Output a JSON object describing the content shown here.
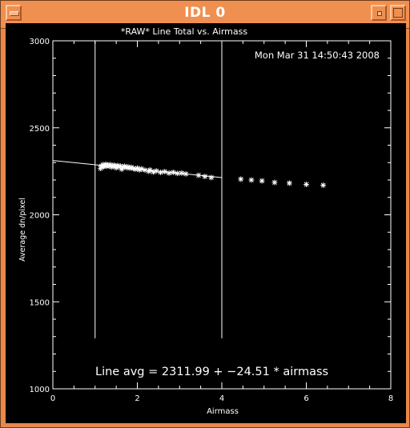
{
  "window": {
    "title": "IDL 0"
  },
  "plot": {
    "timestamp": "Mon Mar 31 14:50:43 2008",
    "annotation": "Line avg = 2311.99 + −24.51 * airmass"
  },
  "chart_data": {
    "type": "scatter",
    "title": "*RAW* Line Total vs. Airmass",
    "xlabel": "Airmass",
    "ylabel": "Average dn/pixel",
    "xlim": [
      0,
      8
    ],
    "ylim": [
      1000,
      3000
    ],
    "x_ticks": [
      "0",
      "2",
      "4",
      "6",
      "8"
    ],
    "y_ticks": [
      "1000",
      "1500",
      "2000",
      "2500",
      "3000"
    ],
    "grid": false,
    "marker": "asterisk",
    "series": [
      {
        "points": [
          [
            1.13,
            2266
          ],
          [
            1.15,
            2280
          ],
          [
            1.18,
            2287
          ],
          [
            1.2,
            2276
          ],
          [
            1.22,
            2283
          ],
          [
            1.25,
            2290
          ],
          [
            1.28,
            2279
          ],
          [
            1.3,
            2286
          ],
          [
            1.33,
            2282
          ],
          [
            1.36,
            2288
          ],
          [
            1.39,
            2275
          ],
          [
            1.42,
            2281
          ],
          [
            1.45,
            2285
          ],
          [
            1.48,
            2278
          ],
          [
            1.5,
            2270
          ],
          [
            1.53,
            2283
          ],
          [
            1.57,
            2276
          ],
          [
            1.6,
            2280
          ],
          [
            1.63,
            2262
          ],
          [
            1.66,
            2274
          ],
          [
            1.7,
            2279
          ],
          [
            1.74,
            2271
          ],
          [
            1.78,
            2276
          ],
          [
            1.82,
            2268
          ],
          [
            1.86,
            2273
          ],
          [
            1.9,
            2266
          ],
          [
            1.95,
            2262
          ],
          [
            2.0,
            2268
          ],
          [
            2.05,
            2258
          ],
          [
            2.1,
            2264
          ],
          [
            2.18,
            2257
          ],
          [
            2.27,
            2250
          ],
          [
            2.3,
            2258
          ],
          [
            2.38,
            2246
          ],
          [
            2.45,
            2252
          ],
          [
            2.55,
            2244
          ],
          [
            2.65,
            2248
          ],
          [
            2.75,
            2240
          ],
          [
            2.85,
            2244
          ],
          [
            2.95,
            2238
          ],
          [
            3.05,
            2240
          ],
          [
            3.15,
            2235
          ],
          [
            3.45,
            2227
          ],
          [
            3.6,
            2220
          ],
          [
            3.75,
            2214
          ],
          [
            4.45,
            2205
          ],
          [
            4.7,
            2200
          ],
          [
            4.95,
            2195
          ],
          [
            5.25,
            2186
          ],
          [
            5.6,
            2182
          ],
          [
            6.0,
            2175
          ],
          [
            6.4,
            2170
          ]
        ]
      }
    ],
    "fit_line": {
      "intercept": 2311.99,
      "slope": -24.51,
      "x_range": [
        0,
        4
      ]
    },
    "vertical_lines": [
      {
        "x": 1,
        "y_range": [
          1290,
          3000
        ]
      },
      {
        "x": 4,
        "y_range": [
          1290,
          3000
        ]
      }
    ]
  }
}
